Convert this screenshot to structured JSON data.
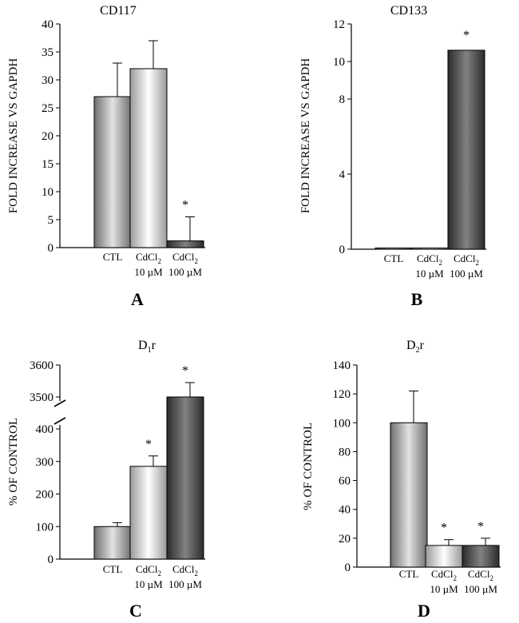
{
  "chart_data": [
    {
      "type": "bar",
      "title": "CD117",
      "panel_label": "A",
      "ylabel": "FOLD INCREASE VS GAPDH",
      "ylim": [
        0,
        40
      ],
      "yticks": [
        "0",
        "5",
        "10",
        "15",
        "20",
        "25",
        "30",
        "35",
        "40"
      ],
      "categories": [
        {
          "line1": "CTL",
          "sub": "",
          "line2": ""
        },
        {
          "line1": "CdCl",
          "sub": "2",
          "line2": "10 µM"
        },
        {
          "line1": "CdCl",
          "sub": "2",
          "line2": "100 µM"
        }
      ],
      "values": [
        27,
        32,
        1.2
      ],
      "errors": [
        6,
        5,
        4.3
      ],
      "significance": [
        "",
        "",
        "*"
      ]
    },
    {
      "type": "bar",
      "title": "CD133",
      "panel_label": "B",
      "ylabel": "FOLD INCREASE VS GAPDH",
      "ylim": [
        0,
        12
      ],
      "yticks": [
        "0",
        "4",
        "8",
        "10",
        "12"
      ],
      "categories": [
        {
          "line1": "CTL",
          "sub": "",
          "line2": ""
        },
        {
          "line1": "CdCl",
          "sub": "2",
          "line2": "10 µM"
        },
        {
          "line1": "CdCl",
          "sub": "2",
          "line2": "100 µM"
        }
      ],
      "values": [
        0.03,
        0.03,
        10.6
      ],
      "errors": [
        0,
        0,
        0
      ],
      "significance": [
        "",
        "",
        "*"
      ]
    },
    {
      "type": "bar",
      "title": "D",
      "title_sub": "1",
      "title_suffix": "r",
      "panel_label": "C",
      "ylabel": "% OF CONTROL",
      "axis_break": {
        "lower_range": [
          0,
          400
        ],
        "upper_range": [
          3500,
          3600
        ]
      },
      "yticks": [
        "0",
        "100",
        "200",
        "300",
        "400",
        "3500",
        "3600"
      ],
      "categories": [
        {
          "line1": "CTL",
          "sub": "",
          "line2": ""
        },
        {
          "line1": "CdCl",
          "sub": "2",
          "line2": "10 µM"
        },
        {
          "line1": "CdCl",
          "sub": "2",
          "line2": "100 µM"
        }
      ],
      "values": [
        100,
        285,
        3500
      ],
      "errors": [
        12,
        32,
        45
      ],
      "significance": [
        "",
        "*",
        "*"
      ]
    },
    {
      "type": "bar",
      "title": "D",
      "title_sub": "2",
      "title_suffix": "r",
      "panel_label": "D",
      "ylabel": "% OF CONTROL",
      "ylim": [
        0,
        140
      ],
      "yticks": [
        "0",
        "20",
        "40",
        "60",
        "80",
        "100",
        "120",
        "140"
      ],
      "categories": [
        {
          "line1": "CTL",
          "sub": "",
          "line2": ""
        },
        {
          "line1": "CdCl",
          "sub": "2",
          "line2": "10 µM"
        },
        {
          "line1": "CdCl",
          "sub": "2",
          "line2": "100 µM"
        }
      ],
      "values": [
        100,
        15,
        15
      ],
      "errors": [
        22,
        4,
        5
      ],
      "significance": [
        "",
        "*",
        "*"
      ]
    }
  ]
}
